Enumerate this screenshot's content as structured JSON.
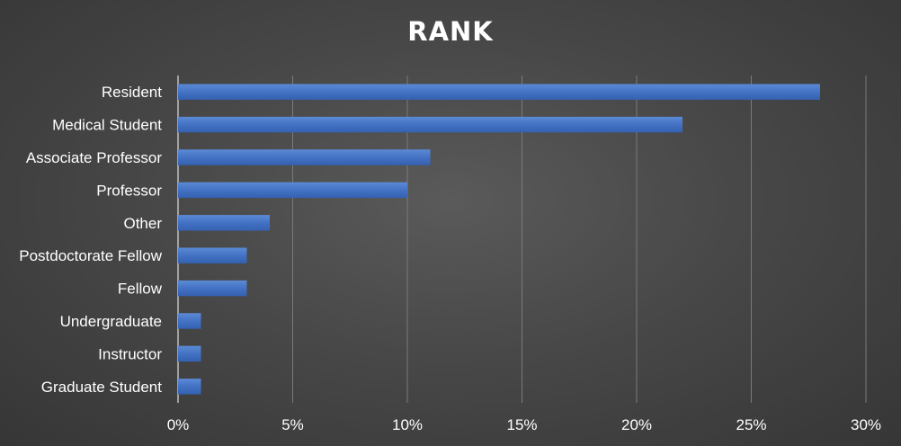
{
  "chart_data": {
    "type": "bar",
    "orientation": "horizontal",
    "title": "RANK",
    "categories": [
      "Resident",
      "Medical Student",
      "Associate Professor",
      "Professor",
      "Other",
      "Postdoctorate Fellow",
      "Fellow",
      "Undergraduate",
      "Instructor",
      "Graduate Student"
    ],
    "values": [
      28,
      22,
      11,
      10,
      4,
      3,
      3,
      1,
      1,
      1
    ],
    "value_unit": "%",
    "xlim": [
      0,
      30
    ],
    "xticks": [
      0,
      5,
      10,
      15,
      20,
      25,
      30
    ],
    "xtick_labels": [
      "0%",
      "5%",
      "10%",
      "15%",
      "20%",
      "25%",
      "30%"
    ],
    "xlabel": "",
    "ylabel": "",
    "grid": "vertical",
    "legend": "none",
    "colors": {
      "bar": "#4472c4",
      "gridline": "#7a7a7a",
      "axis": "#bfbfbf",
      "text": "#ffffff",
      "background": "#404040"
    }
  }
}
